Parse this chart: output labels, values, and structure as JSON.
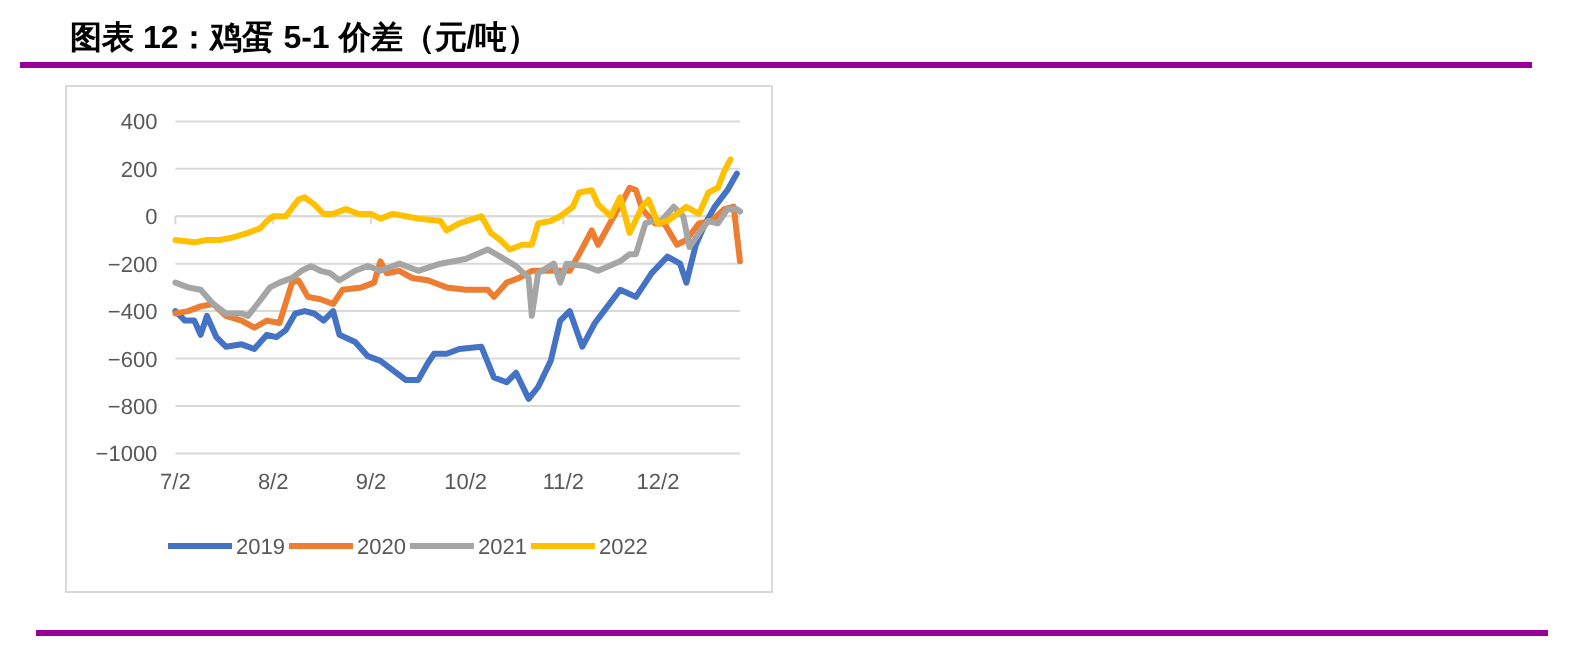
{
  "chart_data": {
    "type": "line",
    "title": "图表 12：鸡蛋 5-1 价差（元/吨）",
    "xlim": [
      "--07-02",
      "--12-28"
    ],
    "xticks": [
      {
        "value": "--07-02",
        "label": "7/2"
      },
      {
        "value": "--08-02",
        "label": "8/2"
      },
      {
        "value": "--09-02",
        "label": "9/2"
      },
      {
        "value": "--10-02",
        "label": "10/2"
      },
      {
        "value": "--11-02",
        "label": "11/2"
      },
      {
        "value": "--12-02",
        "label": "12/2"
      }
    ],
    "ylim": [
      -1000,
      400
    ],
    "yticks": [
      {
        "value": -1000,
        "label": "−1000"
      },
      {
        "value": -800,
        "label": "−800"
      },
      {
        "value": -600,
        "label": "−600"
      },
      {
        "value": -400,
        "label": "−400"
      },
      {
        "value": -200,
        "label": "−200"
      },
      0,
      200,
      400
    ],
    "grid": "y",
    "legend": "bottom",
    "marker": "none",
    "line_style": "solid",
    "series": [
      {
        "name": "2019",
        "color": "#4472c4",
        "x": [
          "--07-02",
          "--07-05",
          "--07-08",
          "--07-10",
          "--07-12",
          "--07-15",
          "--07-18",
          "--07-23",
          "--07-27",
          "--07-31",
          "--08-03",
          "--08-06",
          "--08-09",
          "--08-12",
          "--08-15",
          "--08-18",
          "--08-21",
          "--08-23",
          "--08-28",
          "--09-01",
          "--09-05",
          "--09-09",
          "--09-13",
          "--09-17",
          "--09-20",
          "--09-22",
          "--09-26",
          "--09-30",
          "--10-07",
          "--10-11",
          "--10-15",
          "--10-18",
          "--10-22",
          "--10-25",
          "--10-29",
          "--11-01",
          "--11-04",
          "--11-08",
          "--11-12",
          "--11-16",
          "--11-20",
          "--11-25",
          "--11-30",
          "--12-05",
          "--12-09",
          "--12-11",
          "--12-14",
          "--12-17",
          "--12-20",
          "--12-24",
          "--12-27"
        ],
        "values": [
          -400,
          -440,
          -440,
          -500,
          -420,
          -510,
          -550,
          -540,
          -560,
          -500,
          -510,
          -480,
          -410,
          -400,
          -410,
          -440,
          -400,
          -500,
          -530,
          -590,
          -610,
          -650,
          -690,
          -690,
          -620,
          -580,
          -580,
          -560,
          -550,
          -680,
          -700,
          -660,
          -770,
          -720,
          -610,
          -440,
          -400,
          -550,
          -450,
          -380,
          -310,
          -340,
          -240,
          -170,
          -200,
          -280,
          -120,
          -30,
          40,
          110,
          180
        ]
      },
      {
        "name": "2020",
        "color": "#ed7d31",
        "x": [
          "--07-02",
          "--07-06",
          "--07-10",
          "--07-14",
          "--07-18",
          "--07-23",
          "--07-27",
          "--07-31",
          "--08-04",
          "--08-08",
          "--08-10",
          "--08-13",
          "--08-17",
          "--08-21",
          "--08-24",
          "--08-30",
          "--09-03",
          "--09-05",
          "--09-07",
          "--09-11",
          "--09-15",
          "--09-20",
          "--09-26",
          "--10-02",
          "--10-09",
          "--10-11",
          "--10-15",
          "--10-19",
          "--10-23",
          "--10-30",
          "--11-04",
          "--11-07",
          "--11-11",
          "--11-13",
          "--11-18",
          "--11-21",
          "--11-23",
          "--11-25",
          "--11-27",
          "--12-01",
          "--12-04",
          "--12-08",
          "--12-11",
          "--12-15",
          "--12-19",
          "--12-23",
          "--12-26",
          "--12-28"
        ],
        "values": [
          -410,
          -400,
          -380,
          -370,
          -420,
          -440,
          -470,
          -440,
          -450,
          -280,
          -270,
          -340,
          -350,
          -370,
          -310,
          -300,
          -280,
          -190,
          -240,
          -230,
          -260,
          -270,
          -300,
          -310,
          -310,
          -340,
          -280,
          -260,
          -230,
          -230,
          -230,
          -160,
          -60,
          -120,
          0,
          70,
          120,
          110,
          30,
          -30,
          -30,
          -120,
          -100,
          -30,
          -20,
          30,
          40,
          -190
        ]
      },
      {
        "name": "2021",
        "color": "#a5a5a5",
        "x": [
          "--07-02",
          "--07-06",
          "--07-10",
          "--07-14",
          "--07-18",
          "--07-23",
          "--07-25",
          "--07-28",
          "--08-01",
          "--08-04",
          "--08-08",
          "--08-11",
          "--08-14",
          "--08-17",
          "--08-20",
          "--08-23",
          "--08-28",
          "--09-01",
          "--09-05",
          "--09-09",
          "--09-11",
          "--09-17",
          "--09-24",
          "--10-02",
          "--10-09",
          "--10-13",
          "--10-18",
          "--10-22",
          "--10-23",
          "--10-25",
          "--10-30",
          "--11-01",
          "--11-03",
          "--11-09",
          "--11-13",
          "--11-20",
          "--11-23",
          "--11-25",
          "--11-28",
          "--11-30",
          "--12-03",
          "--12-07",
          "--12-10",
          "--12-12",
          "--12-15",
          "--12-18",
          "--12-21",
          "--12-24",
          "--12-27",
          "--12-28"
        ],
        "values": [
          -280,
          -300,
          -310,
          -370,
          -410,
          -410,
          -420,
          -370,
          -300,
          -280,
          -260,
          -230,
          -210,
          -230,
          -240,
          -270,
          -230,
          -210,
          -230,
          -210,
          -200,
          -230,
          -200,
          -180,
          -140,
          -170,
          -210,
          -260,
          -420,
          -240,
          -200,
          -280,
          -200,
          -210,
          -230,
          -190,
          -160,
          -160,
          -30,
          -20,
          -20,
          40,
          0,
          -130,
          -70,
          -20,
          -30,
          30,
          30,
          20
        ]
      },
      {
        "name": "2022",
        "color": "#ffc000",
        "x": [
          "--07-02",
          "--07-08",
          "--07-12",
          "--07-16",
          "--07-20",
          "--07-25",
          "--07-29",
          "--07-31",
          "--08-02",
          "--08-06",
          "--08-10",
          "--08-12",
          "--08-15",
          "--08-18",
          "--08-21",
          "--08-25",
          "--08-29",
          "--09-02",
          "--09-05",
          "--09-09",
          "--09-13",
          "--09-17",
          "--09-24",
          "--09-26",
          "--09-30",
          "--10-07",
          "--10-10",
          "--10-13",
          "--10-16",
          "--10-20",
          "--10-23",
          "--10-25",
          "--10-29",
          "--11-01",
          "--11-05",
          "--11-07",
          "--11-11",
          "--11-13",
          "--11-17",
          "--11-20",
          "--11-23",
          "--11-27",
          "--11-29",
          "--12-02",
          "--12-05",
          "--12-11",
          "--12-15",
          "--12-18",
          "--12-21",
          "--12-23",
          "--12-25"
        ],
        "values": [
          -100,
          -110,
          -100,
          -100,
          -90,
          -70,
          -50,
          -20,
          0,
          0,
          70,
          80,
          50,
          10,
          10,
          30,
          10,
          10,
          -10,
          10,
          0,
          -10,
          -20,
          -60,
          -30,
          0,
          -70,
          -100,
          -140,
          -120,
          -120,
          -30,
          -20,
          0,
          40,
          100,
          110,
          50,
          0,
          80,
          -70,
          40,
          70,
          -30,
          -20,
          40,
          10,
          100,
          120,
          190,
          240
        ]
      }
    ]
  }
}
